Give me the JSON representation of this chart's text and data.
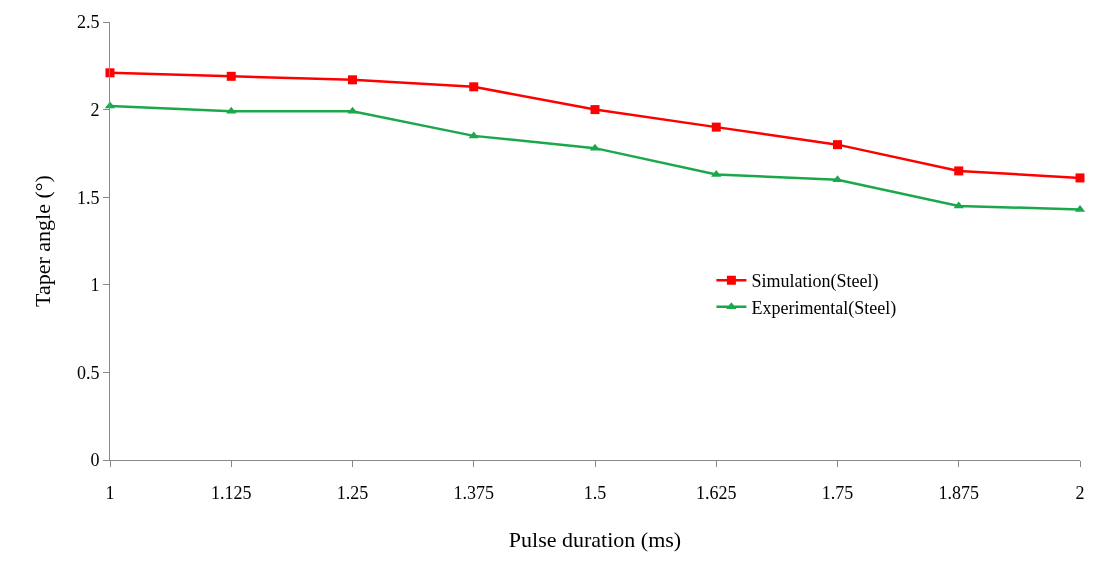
{
  "chart_data": {
    "type": "line",
    "xlabel": "Pulse duration (ms)",
    "ylabel": "Taper angle (°)",
    "x": [
      1,
      1.125,
      1.25,
      1.375,
      1.5,
      1.625,
      1.75,
      1.875,
      2
    ],
    "series": [
      {
        "name": "Simulation(Steel)",
        "color": "#ff0000",
        "marker": "square",
        "values": [
          2.21,
          2.19,
          2.17,
          2.13,
          2.0,
          1.9,
          1.8,
          1.65,
          1.61
        ]
      },
      {
        "name": "Experimental(Steel)",
        "color": "#1aa84a",
        "marker": "triangle",
        "values": [
          2.02,
          1.99,
          1.99,
          1.85,
          1.78,
          1.63,
          1.6,
          1.45,
          1.43
        ]
      }
    ],
    "xlim": [
      1,
      2
    ],
    "xticks": [
      1,
      1.125,
      1.25,
      1.375,
      1.5,
      1.625,
      1.75,
      1.875,
      2
    ],
    "ylim": [
      0,
      2.5
    ],
    "yticks": [
      0,
      0.5,
      1,
      1.5,
      2,
      2.5
    ],
    "legend": "right",
    "line_style": "solid"
  }
}
